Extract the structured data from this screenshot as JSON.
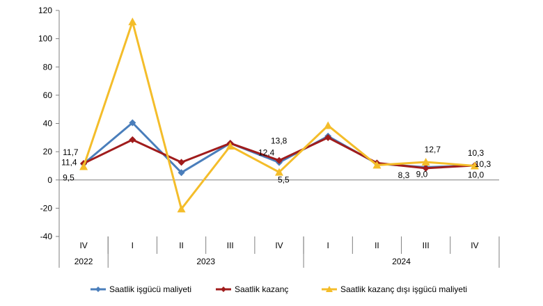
{
  "chart_data": {
    "type": "line",
    "categories": [
      "IV",
      "I",
      "II",
      "III",
      "IV",
      "I",
      "II",
      "III",
      "IV"
    ],
    "year_groups": [
      {
        "label": "2022",
        "span": 1
      },
      {
        "label": "2023",
        "span": 4
      },
      {
        "label": "2024",
        "span": 4
      }
    ],
    "yticks": [
      "120",
      "100",
      "80",
      "60",
      "40",
      "20",
      "0",
      "-20",
      "-40"
    ],
    "ylim": [
      -40,
      120
    ],
    "grid": false,
    "legend_position": "bottom",
    "series": [
      {
        "name": "Saatlik işgücü maliyeti",
        "color": "#4A7EBB",
        "marker": "diamond",
        "values": [
          11.4,
          40.5,
          5.2,
          26.0,
          12.4,
          31.0,
          11.5,
          9.0,
          10.3
        ]
      },
      {
        "name": "Saatlik kazanç",
        "color": "#A01C1C",
        "marker": "diamond",
        "values": [
          11.7,
          28.5,
          12.5,
          26.0,
          13.8,
          30.0,
          12.0,
          8.3,
          10.3
        ]
      },
      {
        "name": "Saatlik kazanç dışı işgücü maliyeti",
        "color": "#F4BD2A",
        "marker": "triangle",
        "values": [
          9.5,
          112.0,
          -20.5,
          24.0,
          5.5,
          38.5,
          10.5,
          12.7,
          10.0
        ]
      }
    ],
    "data_labels": [
      {
        "text": "11,7",
        "index": 0,
        "value": 11.7
      },
      {
        "text": "11,4",
        "index": 0,
        "value": 11.4
      },
      {
        "text": "9,5",
        "index": 0,
        "value": 9.5
      },
      {
        "text": "13,8",
        "index": 4,
        "value": 13.8
      },
      {
        "text": "12,4",
        "index": 4,
        "value": 12.4
      },
      {
        "text": "5,5",
        "index": 4,
        "value": 5.5
      },
      {
        "text": "12,7",
        "index": 7,
        "value": 12.7
      },
      {
        "text": "8,3",
        "index": 7,
        "value": 8.3
      },
      {
        "text": "9,0",
        "index": 7,
        "value": 9.0
      },
      {
        "text": "10,3",
        "index": 8,
        "value": 10.3
      },
      {
        "text": "10,3",
        "index": 8,
        "value": 10.3
      },
      {
        "text": "10,0",
        "index": 8,
        "value": 10.0
      }
    ]
  }
}
